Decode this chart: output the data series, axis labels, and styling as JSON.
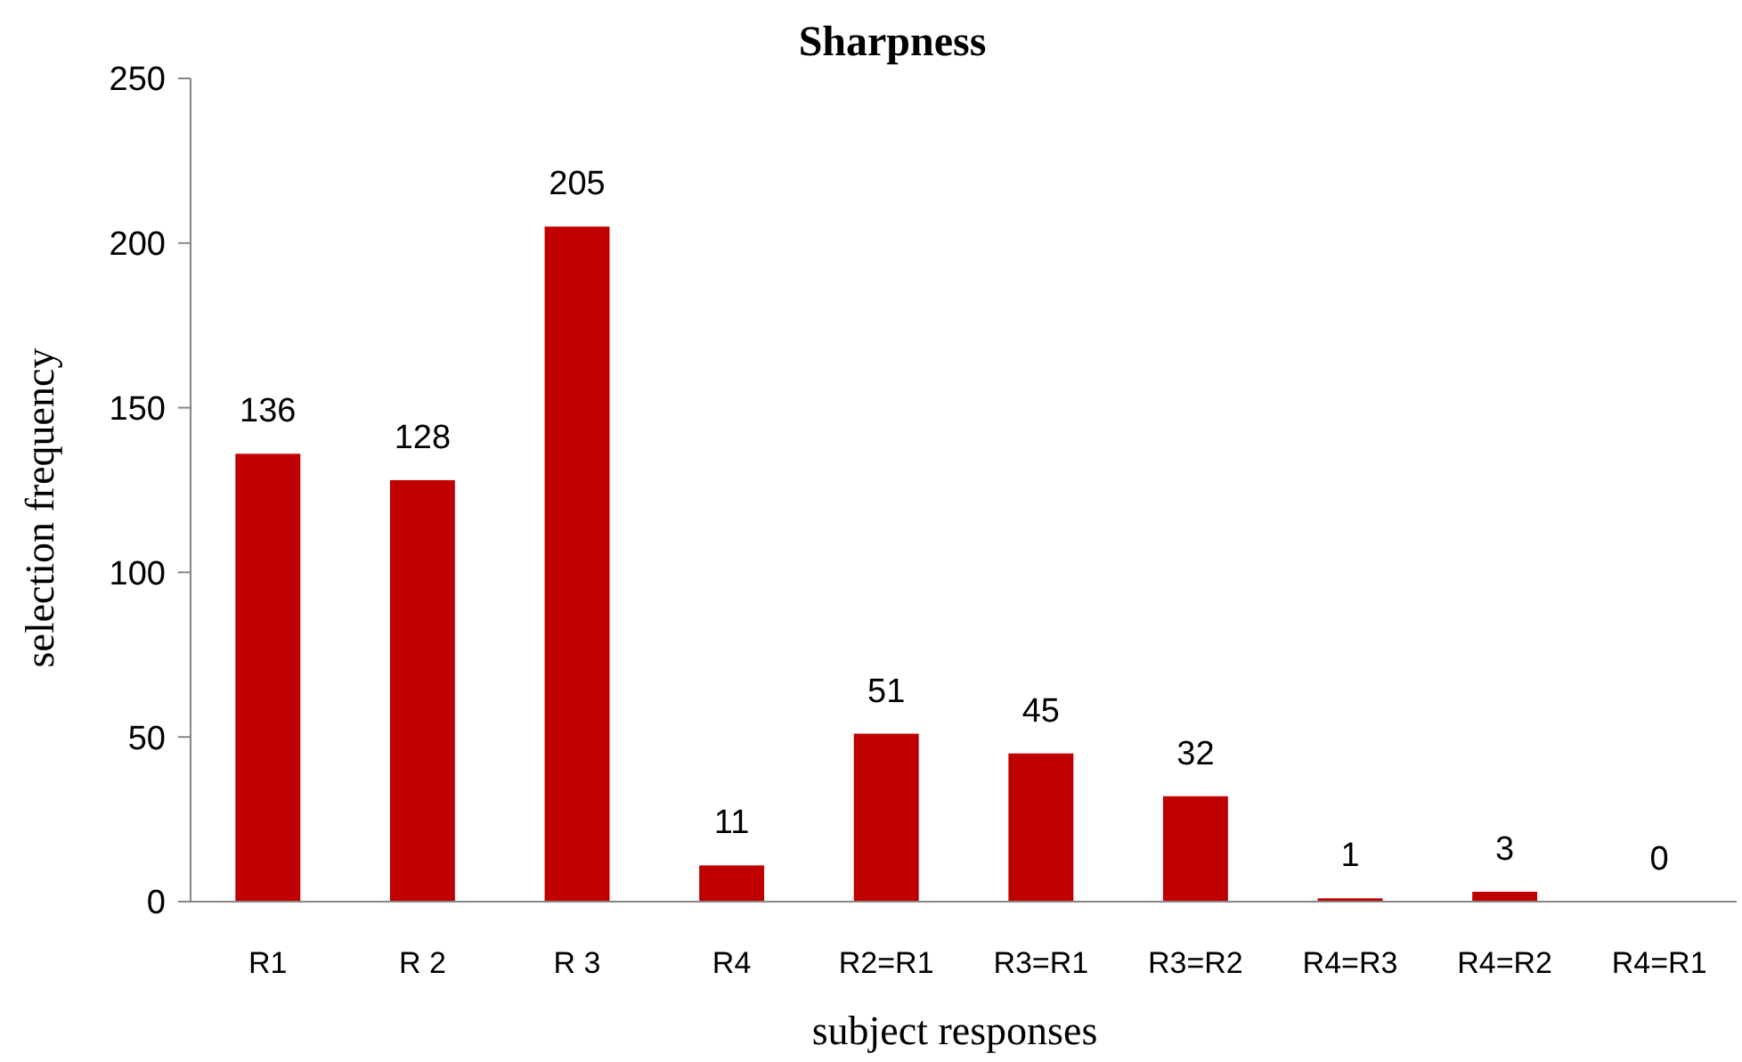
{
  "chart_data": {
    "type": "bar",
    "title": "Sharpness",
    "xlabel": "subject responses",
    "ylabel": "selection frequency",
    "categories": [
      "R1",
      "R 2",
      "R 3",
      "R4",
      "R2=R1",
      "R3=R1",
      "R3=R2",
      "R4=R3",
      "R4=R2",
      "R4=R1"
    ],
    "values": [
      136,
      128,
      205,
      11,
      51,
      45,
      32,
      1,
      3,
      0
    ],
    "color": "#c00000",
    "ylim": [
      0,
      250
    ],
    "yticks": [
      0,
      50,
      100,
      150,
      200,
      250
    ],
    "grid": false,
    "data_labels": true
  }
}
